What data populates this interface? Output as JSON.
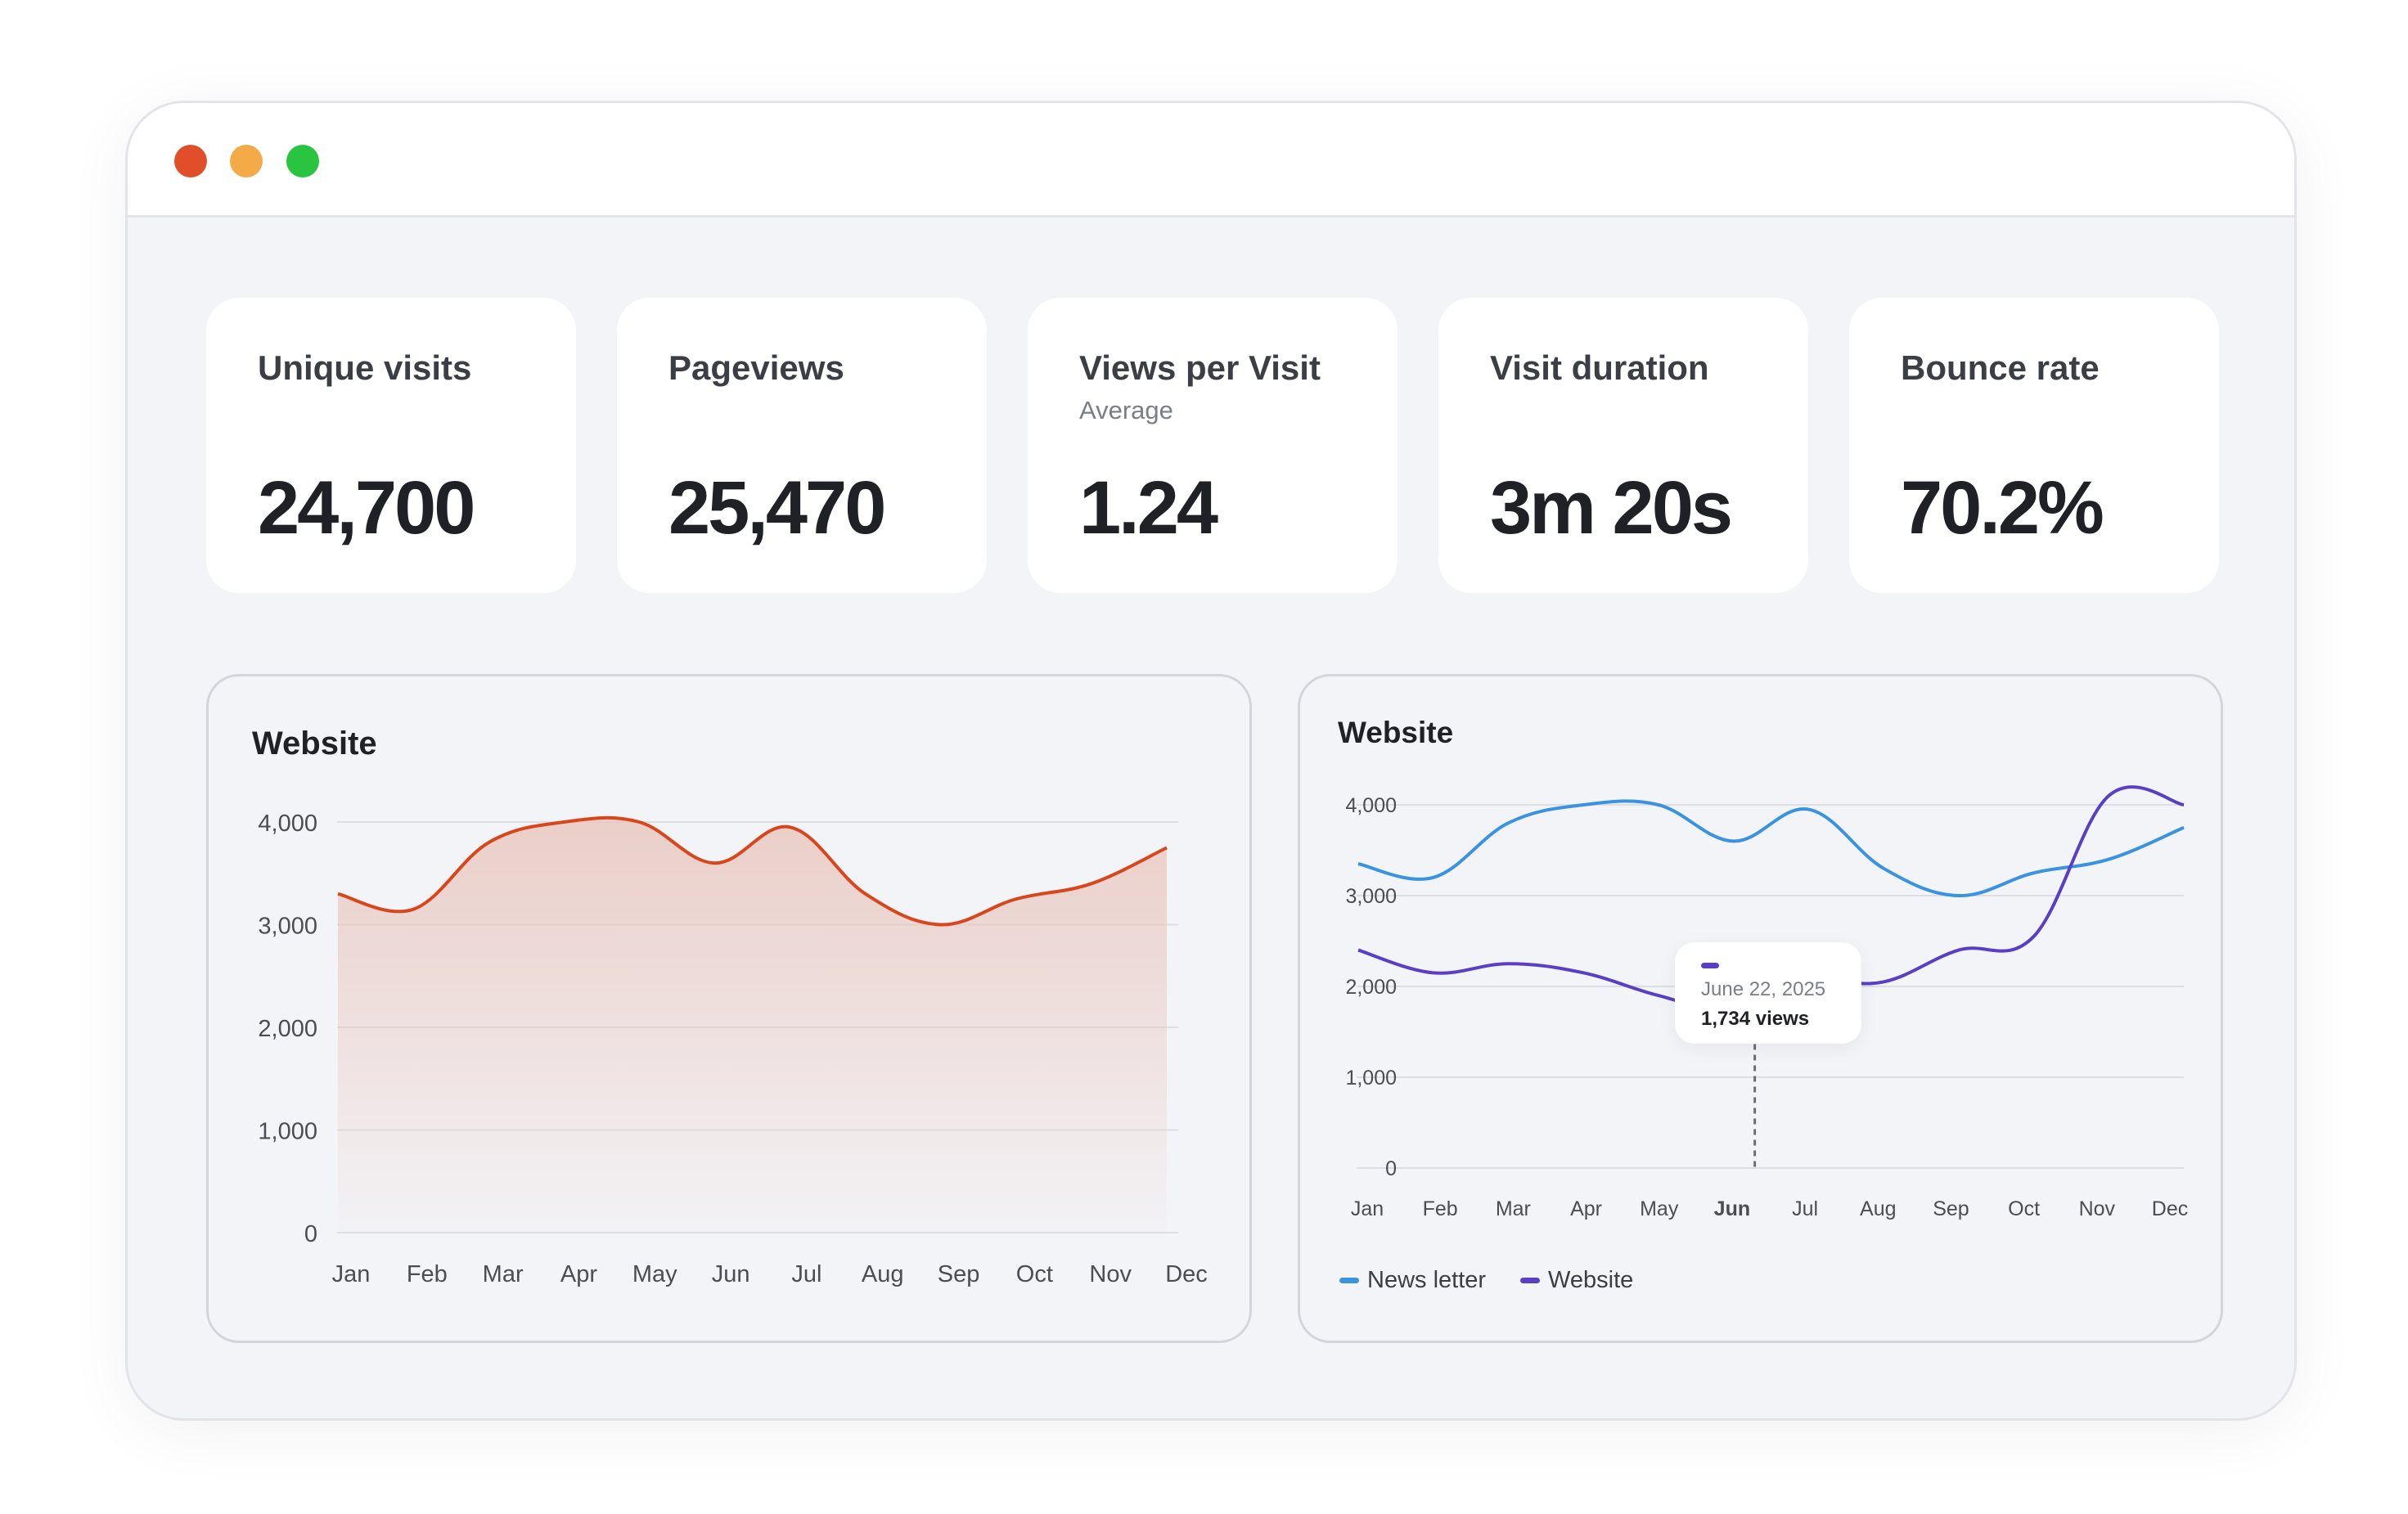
{
  "colors": {
    "window_red": "#e04f2a",
    "window_yellow": "#f4aa46",
    "window_green": "#29c440",
    "area_line": "#d9461b",
    "area_fill": "#e9c8c0",
    "newsletter": "#3a93e0",
    "website": "#5b3ec6"
  },
  "metrics": [
    {
      "label": "Unique visits",
      "sub": "",
      "value": "24,700"
    },
    {
      "label": "Pageviews",
      "sub": "",
      "value": "25,470"
    },
    {
      "label": "Views per Visit",
      "sub": "Average",
      "value": "1.24"
    },
    {
      "label": "Visit duration",
      "sub": "",
      "value": "3m 20s"
    },
    {
      "label": "Bounce rate",
      "sub": "",
      "value": "70.2%"
    }
  ],
  "chart_data": [
    {
      "type": "area",
      "title": "Website",
      "categories": [
        "Jan",
        "Feb",
        "Mar",
        "Apr",
        "May",
        "Jun",
        "Jul",
        "Aug",
        "Sep",
        "Oct",
        "Nov",
        "Dec"
      ],
      "series": [
        {
          "name": "",
          "values": [
            3300,
            3150,
            3800,
            4000,
            4000,
            3600,
            3950,
            3300,
            3000,
            3250,
            3400,
            3750
          ]
        }
      ],
      "yticks": [
        "0",
        "1,000",
        "2,000",
        "3,000",
        "4,000"
      ],
      "ylim": [
        0,
        4000
      ],
      "grid": true
    },
    {
      "type": "line",
      "title": "Website",
      "categories": [
        "Jan",
        "Feb",
        "Mar",
        "Apr",
        "May",
        "Jun",
        "Jul",
        "Aug",
        "Sep",
        "Oct",
        "Nov",
        "Dec"
      ],
      "highlight_category": "Jun",
      "series": [
        {
          "name": "News letter",
          "values": [
            3350,
            3200,
            3800,
            4000,
            4000,
            3600,
            3950,
            3300,
            3000,
            3250,
            3400,
            3750
          ]
        },
        {
          "name": "Website",
          "values": [
            2400,
            2150,
            2250,
            2150,
            1900,
            1734,
            2050,
            2050,
            2400,
            2550,
            4100,
            4000
          ]
        }
      ],
      "yticks": [
        "0",
        "1,000",
        "2,000",
        "3,000",
        "4,000"
      ],
      "ylim": [
        0,
        4000
      ],
      "grid": true,
      "legend": "bottom-left",
      "tooltip": {
        "date": "June 22, 2025",
        "views": "1,734 views"
      }
    }
  ]
}
